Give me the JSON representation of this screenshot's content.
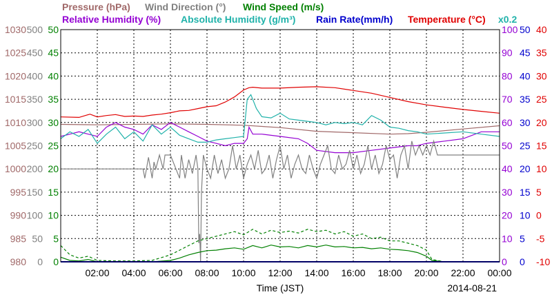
{
  "chart_data": {
    "type": "line",
    "date": "2014-08-21",
    "xlabel": "Time (JST)",
    "x_ticks": [
      "02:00",
      "04:00",
      "06:00",
      "08:00",
      "10:00",
      "12:00",
      "14:00",
      "16:00",
      "18:00",
      "20:00",
      "22:00",
      "00:00"
    ],
    "grid": true,
    "header": {
      "pressure": "Pressure (hPa)",
      "wind_direction": "Wind Direction (°)",
      "wind_speed": "Wind Speed (m/s)",
      "relative_humidity": "Relative Humidity (%)",
      "absolute_humidity": "Absolute Humidity (g/m³)",
      "rain_rate": "Rain Rate(mm/h)",
      "temperature": "Temperature (°C)",
      "multiplier": "x0.2"
    },
    "axes": {
      "pressure": {
        "ticks": [
          "1030",
          "1025",
          "1020",
          "1015",
          "1010",
          "1005",
          "1000",
          "995",
          "990",
          "985",
          "980"
        ],
        "ylim": [
          980,
          1030
        ]
      },
      "wind_direction": {
        "ticks": [
          "500",
          "450",
          "400",
          "350",
          "300",
          "250",
          "200",
          "150",
          "100",
          "50",
          "0"
        ],
        "ylim": [
          0,
          500
        ]
      },
      "wind_speed": {
        "ticks": [
          "50",
          "45",
          "40",
          "35",
          "30",
          "25",
          "20",
          "15",
          "10",
          "5",
          "0"
        ],
        "ylim": [
          0,
          50
        ]
      },
      "relative_humidity": {
        "ticks": [
          "100",
          "90",
          "80",
          "70",
          "60",
          "50",
          "40",
          "30",
          "20",
          "10",
          "0"
        ],
        "ylim": [
          0,
          100
        ]
      },
      "rain_rate": {
        "ticks": [
          "50",
          "45",
          "40",
          "35",
          "30",
          "25",
          "20",
          "15",
          "10",
          "5",
          "0"
        ],
        "ylim": [
          0,
          50
        ]
      },
      "temperature": {
        "ticks": [
          "40",
          "35",
          "30",
          "25",
          "20",
          "15",
          "10",
          "5",
          "0",
          "-5",
          "-10"
        ],
        "ylim": [
          -10,
          40
        ]
      }
    },
    "colors": {
      "pressure": "#a06868",
      "wind_direction": "#808080",
      "wind_speed": "#008000",
      "relative_humidity": "#9400d3",
      "absolute_humidity": "#20b2aa",
      "rain_rate": "#0000cd",
      "temperature": "#e00000",
      "grid": "#000000"
    },
    "series": [
      {
        "name": "Temperature",
        "axis": "temperature",
        "style": "solid",
        "x": [
          0,
          1,
          1.6,
          2,
          2.5,
          3,
          3.5,
          4,
          4.5,
          5,
          5.5,
          6,
          6.5,
          7,
          7.5,
          8,
          8.5,
          9,
          9.5,
          10,
          10.3,
          10.5,
          11,
          12,
          13,
          14,
          15,
          16,
          17,
          18,
          19,
          20,
          21,
          22,
          23,
          24
        ],
        "y": [
          21.2,
          21.1,
          21.8,
          21.2,
          21.5,
          21.7,
          21.3,
          21.4,
          21.3,
          21.6,
          21.8,
          22.1,
          22.5,
          22.6,
          23.0,
          23.4,
          23.6,
          24.4,
          25.5,
          27.0,
          27.5,
          27.6,
          27.4,
          27.4,
          27.6,
          27.7,
          27.5,
          26.9,
          26.3,
          25.4,
          24.5,
          23.8,
          23.3,
          22.8,
          22.4,
          22.0
        ]
      },
      {
        "name": "Pressure",
        "axis": "pressure",
        "style": "solid",
        "x": [
          0,
          2,
          4,
          6,
          8,
          10,
          12,
          14,
          16,
          18,
          19,
          20,
          22,
          24
        ],
        "y": [
          1009.6,
          1009.5,
          1009.6,
          1009.7,
          1009.6,
          1009.4,
          1008.9,
          1008.1,
          1007.8,
          1007.5,
          1007.6,
          1007.9,
          1008.6,
          1009.3
        ]
      },
      {
        "name": "Relative Humidity",
        "axis": "relative_humidity",
        "style": "solid",
        "x": [
          0,
          0.5,
          1,
          1.5,
          2,
          2.5,
          3,
          3.5,
          4,
          4.5,
          5,
          5.5,
          6,
          6.5,
          7,
          7.5,
          8,
          8.5,
          9,
          9.5,
          10,
          10.2,
          10.3,
          10.5,
          11,
          12,
          13,
          13.5,
          14,
          15,
          16,
          17,
          18,
          19,
          19.5,
          20,
          21,
          22,
          23,
          24
        ],
        "y": [
          54,
          55,
          56,
          55,
          54,
          58,
          60,
          58,
          57,
          55,
          59,
          57,
          60,
          58,
          56,
          54,
          52,
          51,
          50,
          51,
          51,
          53,
          58,
          55,
          55,
          54,
          53,
          51,
          48,
          47,
          47,
          48,
          49,
          50,
          50,
          51,
          52,
          53,
          56,
          56
        ]
      },
      {
        "name": "Absolute Humidity",
        "axis": "absolute_humidity",
        "style": "solid",
        "x": [
          0,
          0.5,
          1,
          1.5,
          2,
          2.5,
          3,
          3.5,
          4,
          4.5,
          5,
          5.5,
          6,
          6.5,
          7,
          7.5,
          8,
          8.5,
          9,
          9.5,
          10,
          10.2,
          10.4,
          10.7,
          11,
          11.5,
          12,
          12.5,
          13,
          13.5,
          14,
          14.5,
          15,
          15.5,
          16,
          16.5,
          17,
          17.5,
          18,
          18.5,
          19,
          19.5,
          20,
          21,
          22,
          23,
          24
        ],
        "y": [
          10.6,
          11.2,
          10.8,
          11.4,
          10.2,
          11.0,
          11.6,
          10.6,
          11.2,
          10.4,
          11.8,
          11.0,
          11.6,
          10.9,
          10.6,
          10.3,
          10.3,
          10.5,
          10.6,
          10.7,
          10.8,
          14.0,
          14.4,
          13.2,
          12.5,
          12.4,
          12.8,
          12.3,
          12.2,
          12.1,
          12.0,
          11.8,
          12.0,
          11.9,
          12.0,
          11.8,
          12.6,
          12.2,
          11.6,
          11.5,
          11.3,
          11.2,
          11.0,
          11.1,
          11.2,
          11.0,
          10.8
        ]
      },
      {
        "name": "Wind Direction",
        "axis": "wind_direction",
        "style": "solid",
        "x": [
          0,
          4.5,
          4.6,
          4.8,
          5.0,
          5.1,
          5.2,
          5.4,
          5.6,
          5.7,
          6.0,
          6.5,
          6.6,
          6.8,
          7.0,
          7.2,
          7.4,
          7.5,
          7.55,
          7.6,
          7.65,
          7.7,
          7.8,
          8.0,
          8.2,
          8.4,
          8.6,
          8.8,
          9.0,
          9.2,
          9.4,
          9.6,
          9.8,
          10.0,
          10.2,
          10.4,
          10.6,
          10.8,
          11.0,
          11.2,
          11.4,
          11.6,
          11.8,
          12.0,
          12.2,
          12.4,
          12.6,
          12.8,
          13.0,
          13.2,
          13.4,
          13.6,
          13.8,
          14.0,
          14.2,
          14.4,
          14.6,
          14.8,
          15.0,
          15.2,
          15.4,
          15.6,
          15.8,
          16.0,
          16.2,
          16.4,
          16.6,
          16.8,
          17.0,
          17.2,
          17.4,
          17.6,
          17.8,
          18.0,
          18.2,
          18.4,
          18.6,
          18.8,
          19.0,
          19.2,
          19.4,
          19.6,
          19.8,
          20.0,
          20.2,
          20.4,
          20.6,
          21,
          22,
          23,
          24
        ],
        "y": [
          200,
          200,
          180,
          225,
          180,
          215,
          200,
          230,
          200,
          230,
          230,
          180,
          230,
          180,
          220,
          190,
          230,
          200,
          40,
          60,
          0,
          150,
          230,
          200,
          180,
          230,
          190,
          220,
          180,
          200,
          250,
          200,
          230,
          180,
          210,
          230,
          200,
          240,
          190,
          200,
          230,
          180,
          220,
          250,
          200,
          230,
          180,
          210,
          230,
          200,
          190,
          230,
          200,
          180,
          210,
          230,
          250,
          200,
          190,
          230,
          200,
          210,
          240,
          200,
          230,
          190,
          210,
          250,
          200,
          230,
          190,
          210,
          250,
          220,
          230,
          180,
          230,
          250,
          200,
          260,
          230,
          250,
          230,
          250,
          230,
          260,
          230,
          230,
          230,
          230,
          230
        ]
      },
      {
        "name": "Wind Speed",
        "axis": "wind_speed",
        "style": "solid",
        "x": [
          0,
          0.5,
          1,
          1.5,
          2,
          3,
          4,
          5,
          6,
          6.5,
          7,
          7.5,
          8,
          8.5,
          9,
          9.5,
          10,
          10.5,
          11,
          11.5,
          12,
          12.5,
          13,
          13.5,
          14,
          14.5,
          15,
          15.5,
          16,
          16.5,
          17,
          17.5,
          18,
          18.5,
          19,
          19.5,
          20,
          20.3,
          21,
          22,
          23,
          24
        ],
        "y": [
          1.0,
          0.3,
          0.2,
          0.5,
          0.0,
          0.0,
          0.0,
          0.0,
          0.3,
          0.8,
          1.5,
          2.0,
          2.4,
          2.5,
          2.8,
          3.0,
          2.7,
          3.5,
          3.0,
          3.6,
          3.2,
          3.3,
          3.0,
          3.5,
          3.2,
          3.6,
          3.2,
          3.3,
          3.0,
          3.1,
          2.8,
          3.0,
          2.7,
          2.6,
          2.4,
          2.0,
          1.2,
          0.3,
          0.0,
          0.0,
          0.0,
          0.0
        ]
      },
      {
        "name": "Wind Speed max",
        "axis": "wind_speed",
        "style": "dashed",
        "x": [
          0,
          0.5,
          1,
          1.5,
          2,
          3,
          4,
          5,
          6,
          6.5,
          7,
          7.5,
          8,
          8.5,
          9,
          9.5,
          10,
          10.5,
          11,
          11.5,
          12,
          12.5,
          13,
          13.5,
          14,
          14.5,
          15,
          15.5,
          16,
          16.5,
          17,
          17.5,
          18,
          18.5,
          19,
          19.5,
          20,
          20.3,
          21,
          22,
          23,
          24
        ],
        "y": [
          3.5,
          1.5,
          0.8,
          1.2,
          0.3,
          0.2,
          0.2,
          0.3,
          1.5,
          2.5,
          3.5,
          4.5,
          5.0,
          5.5,
          6.0,
          6.5,
          5.8,
          7.0,
          6.0,
          6.8,
          6.3,
          6.6,
          6.2,
          7.0,
          6.5,
          6.8,
          6.0,
          6.5,
          5.5,
          6.0,
          5.0,
          5.3,
          4.5,
          4.5,
          4.0,
          3.5,
          2.5,
          0.5,
          0.0,
          0.0,
          0.0,
          0.0
        ]
      },
      {
        "name": "Rain Rate",
        "axis": "rain_rate",
        "style": "solid",
        "x": [
          0,
          24
        ],
        "y": [
          0,
          0
        ]
      }
    ]
  }
}
